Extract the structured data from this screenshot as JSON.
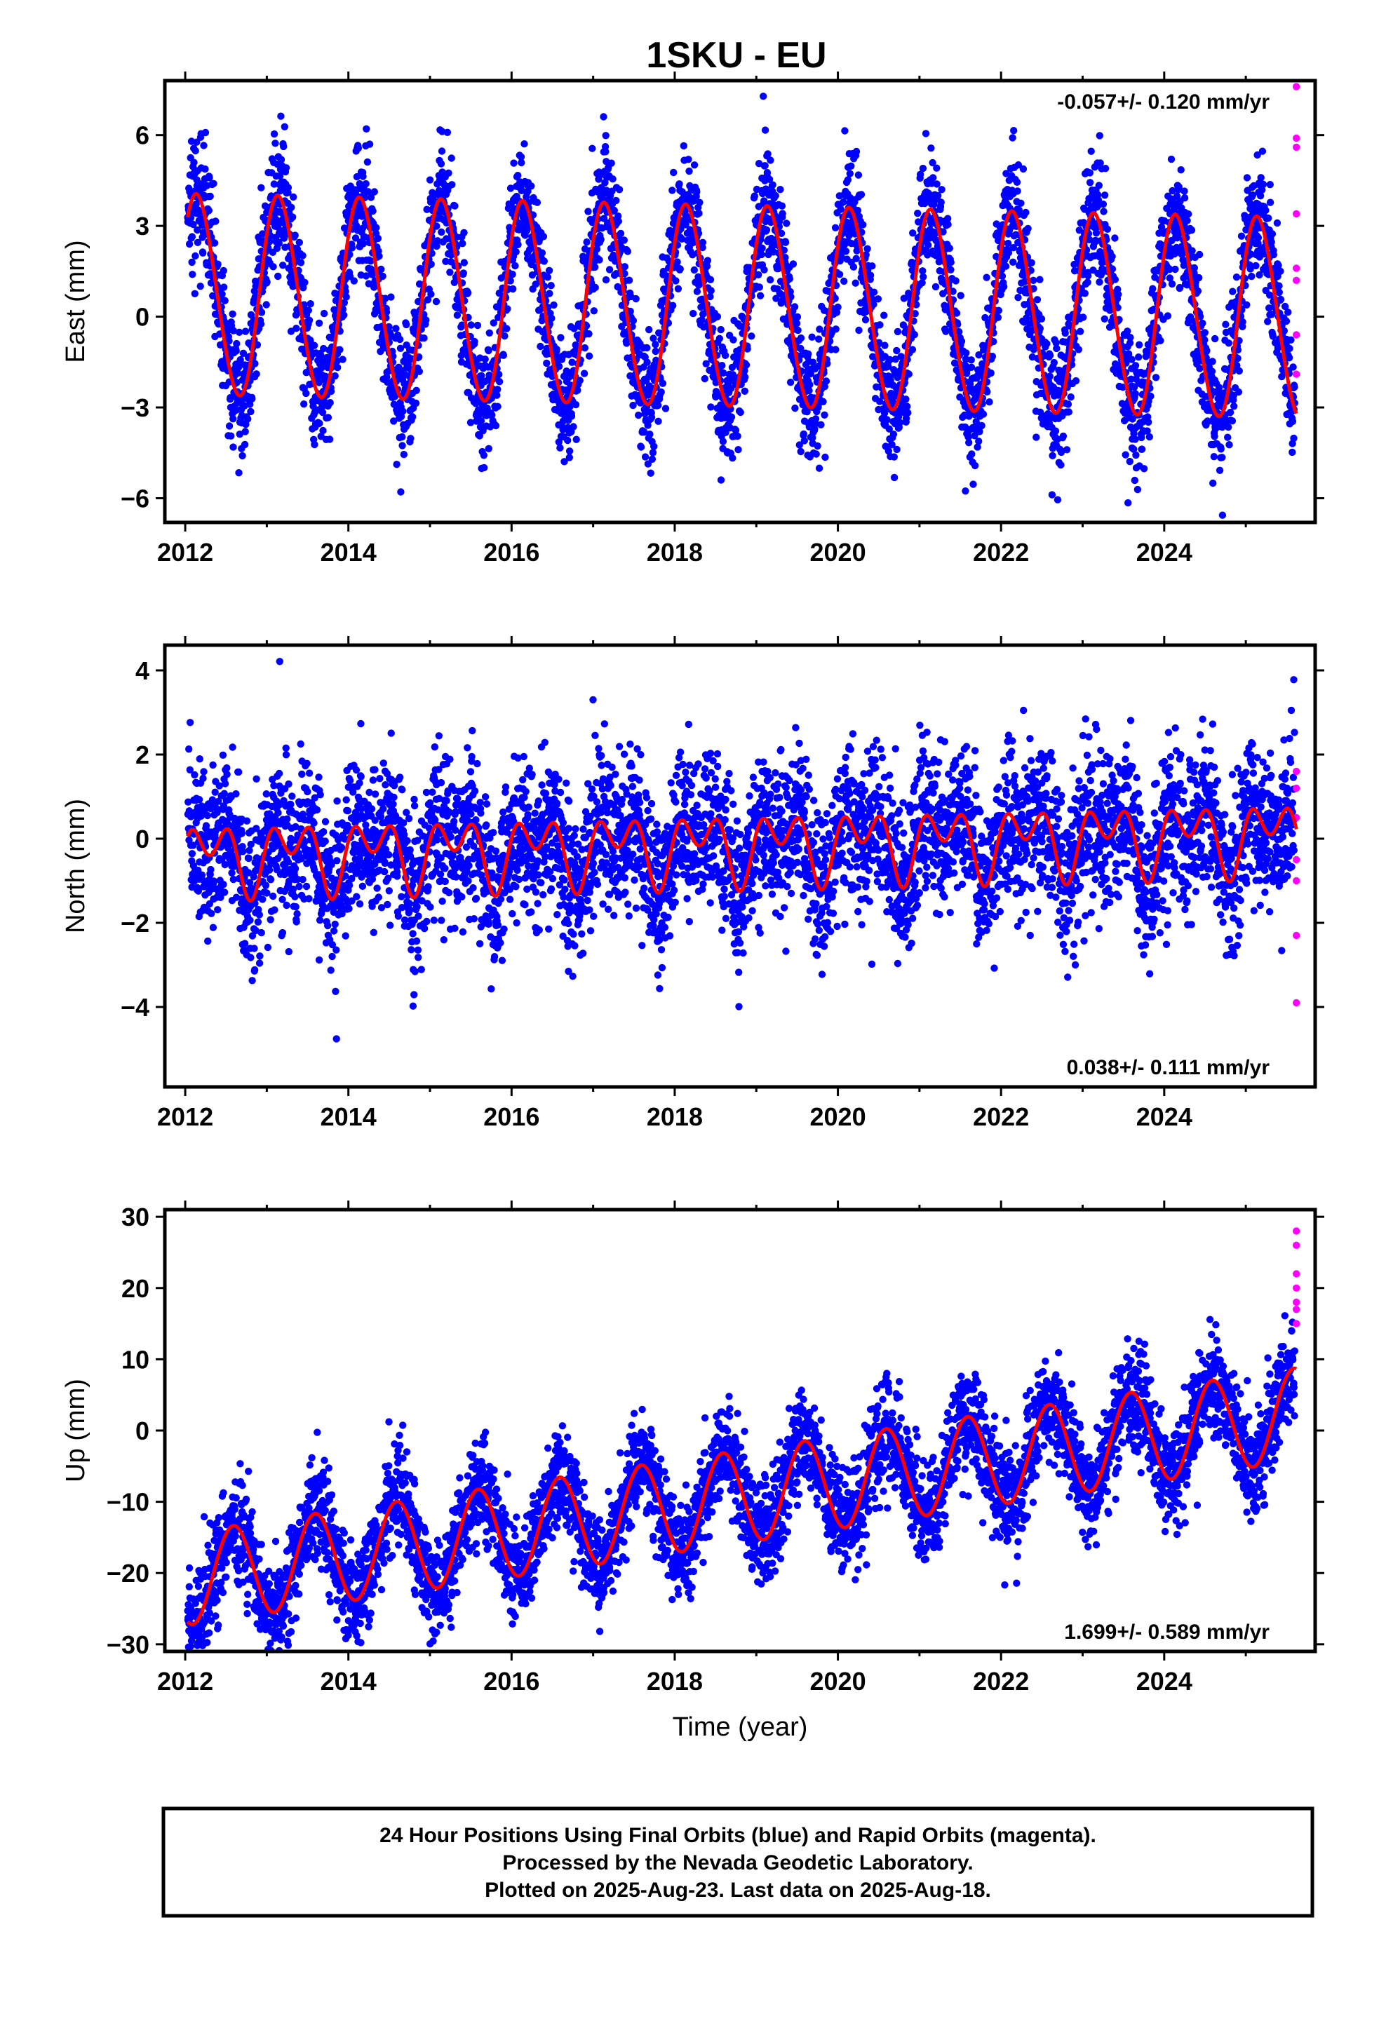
{
  "title": "1SKU - EU",
  "caption": {
    "line1": "24 Hour Positions Using Final Orbits (blue) and Rapid Orbits (magenta).",
    "line2": "Processed by the Nevada Geodetic Laboratory.",
    "line3": "Plotted on 2025-Aug-23. Last data on 2025-Aug-18."
  },
  "colors": {
    "final": "#0000ff",
    "rapid": "#ff00ff",
    "model": "#ff0000"
  },
  "chart_data": [
    {
      "type": "scatter",
      "ylabel": "East (mm)",
      "xlabel": "",
      "rate_label": "-0.057+/- 0.120 mm/yr",
      "xlim": [
        2011.75,
        2025.85
      ],
      "ylim": [
        -6.8,
        7.8
      ],
      "xticks": [
        2012,
        2014,
        2016,
        2018,
        2020,
        2022,
        2024
      ],
      "yticks": [
        -6,
        -3,
        0,
        3,
        6
      ],
      "model": {
        "trend_mm_per_yr": -0.057,
        "offset_mm": 0.3,
        "annual_amp_mm": 3.3,
        "annual_phase_yr": 0.15,
        "semiannual_amp_mm": 0.2,
        "semiannual_phase_yr": 0.05
      },
      "scatter_sigma_mm": 1.0,
      "rapid_points": [
        [
          2025.62,
          7.6
        ],
        [
          2025.62,
          5.9
        ],
        [
          2025.62,
          5.6
        ],
        [
          2025.62,
          3.4
        ],
        [
          2025.62,
          1.6
        ],
        [
          2025.62,
          1.2
        ],
        [
          2025.62,
          -0.6
        ],
        [
          2025.62,
          -1.9
        ]
      ]
    },
    {
      "type": "scatter",
      "ylabel": "North (mm)",
      "xlabel": "",
      "rate_label": "0.038+/- 0.111 mm/yr",
      "xlim": [
        2011.75,
        2025.85
      ],
      "ylim": [
        -5.9,
        4.6
      ],
      "xticks": [
        2012,
        2014,
        2016,
        2018,
        2020,
        2022,
        2024
      ],
      "yticks": [
        -4,
        -2,
        0,
        2,
        4
      ],
      "model": {
        "trend_mm_per_yr": 0.038,
        "offset_mm": -0.15,
        "annual_amp_mm": 0.55,
        "annual_phase_yr": 0.3,
        "semiannual_amp_mm": 0.55,
        "semiannual_phase_yr": 0.05
      },
      "scatter_sigma_mm": 0.9,
      "rapid_points": [
        [
          2025.62,
          1.6
        ],
        [
          2025.62,
          1.2
        ],
        [
          2025.62,
          0.5
        ],
        [
          2025.62,
          -0.5
        ],
        [
          2025.62,
          -1.0
        ],
        [
          2025.62,
          -2.3
        ],
        [
          2025.62,
          -3.9
        ]
      ]
    },
    {
      "type": "scatter",
      "ylabel": "Up (mm)",
      "xlabel": "Time (year)",
      "rate_label": "1.699+/- 0.589 mm/yr",
      "xlim": [
        2011.75,
        2025.85
      ],
      "ylim": [
        -31,
        31
      ],
      "xticks": [
        2012,
        2014,
        2016,
        2018,
        2020,
        2022,
        2024
      ],
      "yticks": [
        -30,
        -20,
        -10,
        0,
        10,
        20,
        30
      ],
      "model": {
        "trend_mm_per_yr": 1.699,
        "offset_mm": -9.3,
        "annual_amp_mm": 6.5,
        "annual_phase_yr": 0.59,
        "semiannual_amp_mm": 0.0,
        "semiannual_phase_yr": 0.0
      },
      "scatter_sigma_mm": 3.6,
      "rapid_points": [
        [
          2025.62,
          28
        ],
        [
          2025.62,
          26
        ],
        [
          2025.62,
          22
        ],
        [
          2025.62,
          20
        ],
        [
          2025.62,
          18
        ],
        [
          2025.62,
          17
        ],
        [
          2025.62,
          15
        ]
      ]
    }
  ]
}
